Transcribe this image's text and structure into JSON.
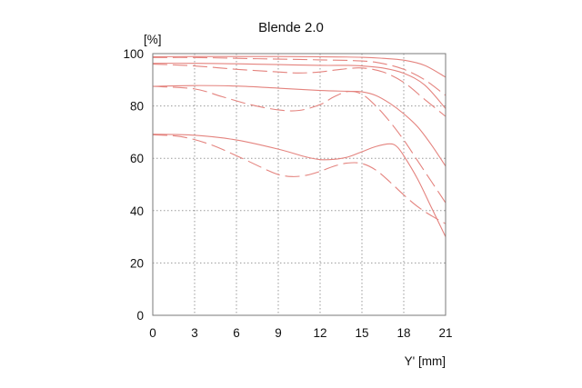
{
  "chart_data": {
    "type": "line",
    "title": "Blende 2.0",
    "ylabel": "[%]",
    "xlabel": "Y' [mm]",
    "xlim": [
      0,
      21
    ],
    "ylim": [
      0,
      100
    ],
    "xticks": [
      "0",
      "3",
      "6",
      "9",
      "12",
      "15",
      "18",
      "21"
    ],
    "yticks": [
      "0",
      "20",
      "40",
      "60",
      "80",
      "100"
    ],
    "grid": true,
    "line_color": "#e4837e",
    "series": [
      {
        "style": "solid",
        "x": [
          0,
          3,
          6,
          9,
          12,
          15,
          16.5,
          18,
          19.5,
          21
        ],
        "y": [
          98.8,
          98.9,
          98.9,
          98.9,
          98.8,
          98.6,
          98.2,
          97.5,
          95.5,
          91
        ]
      },
      {
        "style": "dashed",
        "x": [
          0,
          3,
          6,
          9,
          12,
          15,
          16.5,
          18,
          19.5,
          21
        ],
        "y": [
          98.5,
          98.5,
          98.2,
          97.9,
          97.6,
          97.2,
          96.2,
          94,
          90,
          84
        ]
      },
      {
        "style": "solid",
        "x": [
          0,
          3,
          6,
          9,
          12,
          14,
          15,
          16.5,
          18,
          19.5,
          21
        ],
        "y": [
          96.3,
          96.3,
          96.1,
          95.8,
          95.5,
          95.5,
          95.3,
          94.5,
          92.5,
          88,
          79
        ]
      },
      {
        "style": "dashed",
        "x": [
          0,
          3,
          6,
          9,
          10.5,
          12,
          13.5,
          15,
          16.5,
          18,
          19.5,
          21
        ],
        "y": [
          96,
          95.3,
          94,
          93,
          92.6,
          93,
          94,
          94.5,
          93,
          89,
          82.5,
          76
        ]
      },
      {
        "style": "solid",
        "x": [
          0,
          3,
          6,
          9,
          12,
          14,
          15,
          16,
          17,
          18,
          19,
          20,
          21
        ],
        "y": [
          87.5,
          87.8,
          87.6,
          86.8,
          85.9,
          85.6,
          85.4,
          84,
          81,
          77,
          72,
          65,
          57
        ]
      },
      {
        "style": "dashed",
        "x": [
          0,
          3,
          5,
          7,
          9,
          10.5,
          12,
          13,
          14,
          15,
          16,
          17,
          18,
          19,
          20,
          21
        ],
        "y": [
          87.5,
          86.5,
          83.5,
          80.5,
          78.5,
          78.3,
          80.5,
          83.5,
          85.5,
          84.5,
          80,
          74,
          67,
          59,
          51,
          43
        ]
      },
      {
        "style": "solid",
        "x": [
          0,
          3,
          6,
          9,
          11,
          12,
          13,
          14,
          15,
          16,
          17,
          17.5,
          18,
          19,
          20,
          21
        ],
        "y": [
          69.2,
          68.8,
          67,
          63.5,
          60.5,
          59.5,
          59.6,
          60.5,
          62.5,
          64.5,
          65.5,
          64.5,
          61,
          52,
          41,
          30
        ]
      },
      {
        "style": "dashed",
        "x": [
          0,
          2,
          4,
          6,
          8,
          9,
          10,
          11,
          12,
          13,
          14,
          15,
          16,
          17,
          18,
          19,
          20,
          21
        ],
        "y": [
          69,
          68.3,
          65.5,
          61,
          56,
          53.8,
          53,
          53.5,
          55,
          57,
          58.2,
          58,
          55.5,
          51,
          46,
          41.5,
          38,
          35
        ]
      }
    ]
  }
}
